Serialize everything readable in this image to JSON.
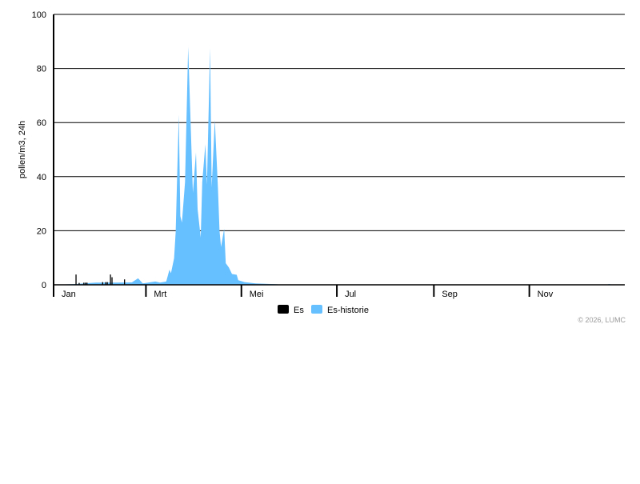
{
  "chart_data": {
    "type": "area",
    "ylabel": "pollen/m3, 24h",
    "ylim": [
      0,
      100
    ],
    "yticks": [
      0,
      20,
      40,
      60,
      80,
      100
    ],
    "xlim": [
      "01-01",
      "12-31"
    ],
    "xticks": [
      {
        "date": "01-01",
        "label": "Jan"
      },
      {
        "date": "03-01",
        "label": "Mrt"
      },
      {
        "date": "05-01",
        "label": "Mei"
      },
      {
        "date": "07-01",
        "label": "Jul"
      },
      {
        "date": "09-01",
        "label": "Sep"
      },
      {
        "date": "11-01",
        "label": "Nov"
      }
    ],
    "grid": true,
    "legend_position": "bottom",
    "series": [
      {
        "name": "Es-historie",
        "type": "area",
        "color": "#66bfff",
        "points": [
          [
            "01-01",
            0
          ],
          [
            "01-15",
            0.3
          ],
          [
            "01-28",
            0.8
          ],
          [
            "02-10",
            0.8
          ],
          [
            "02-20",
            0.9
          ],
          [
            "02-24",
            2.4
          ],
          [
            "02-27",
            0.5
          ],
          [
            "03-07",
            1.2
          ],
          [
            "03-10",
            0.8
          ],
          [
            "03-14",
            1.2
          ],
          [
            "03-16",
            5.6
          ],
          [
            "03-17",
            4.3
          ],
          [
            "03-19",
            9.8
          ],
          [
            "03-20",
            19.5
          ],
          [
            "03-22",
            63
          ],
          [
            "03-23",
            25.4
          ],
          [
            "03-24",
            23
          ],
          [
            "03-26",
            38
          ],
          [
            "03-28",
            88
          ],
          [
            "03-31",
            34
          ],
          [
            "04-02",
            49
          ],
          [
            "04-03",
            28
          ],
          [
            "04-05",
            17.5
          ],
          [
            "04-06",
            38
          ],
          [
            "04-08",
            52
          ],
          [
            "04-09",
            37
          ],
          [
            "04-11",
            87.6
          ],
          [
            "04-12",
            36
          ],
          [
            "04-14",
            61
          ],
          [
            "04-16",
            36
          ],
          [
            "04-17",
            20
          ],
          [
            "04-18",
            14
          ],
          [
            "04-20",
            20.7
          ],
          [
            "04-21",
            8
          ],
          [
            "04-23",
            6.4
          ],
          [
            "04-25",
            4
          ],
          [
            "04-28",
            3.7
          ],
          [
            "04-29",
            1.7
          ],
          [
            "05-03",
            1
          ],
          [
            "05-10",
            0.5
          ],
          [
            "05-23",
            0.2
          ],
          [
            "05-28",
            0
          ],
          [
            "12-20",
            0
          ],
          [
            "12-22",
            0.3
          ],
          [
            "12-24",
            0
          ]
        ]
      },
      {
        "name": "Es",
        "type": "bar",
        "color": "#000000",
        "points": [
          [
            "01-15",
            3.8
          ],
          [
            "01-17",
            0.7
          ],
          [
            "01-20",
            0.8
          ],
          [
            "01-21",
            0.8
          ],
          [
            "01-22",
            0.8
          ],
          [
            "02-01",
            1
          ],
          [
            "02-03",
            1
          ],
          [
            "02-04",
            1
          ],
          [
            "02-06",
            3.8
          ],
          [
            "02-07",
            2.8
          ],
          [
            "02-15",
            2
          ]
        ]
      }
    ]
  },
  "copyright": "© 2026, LUMC"
}
